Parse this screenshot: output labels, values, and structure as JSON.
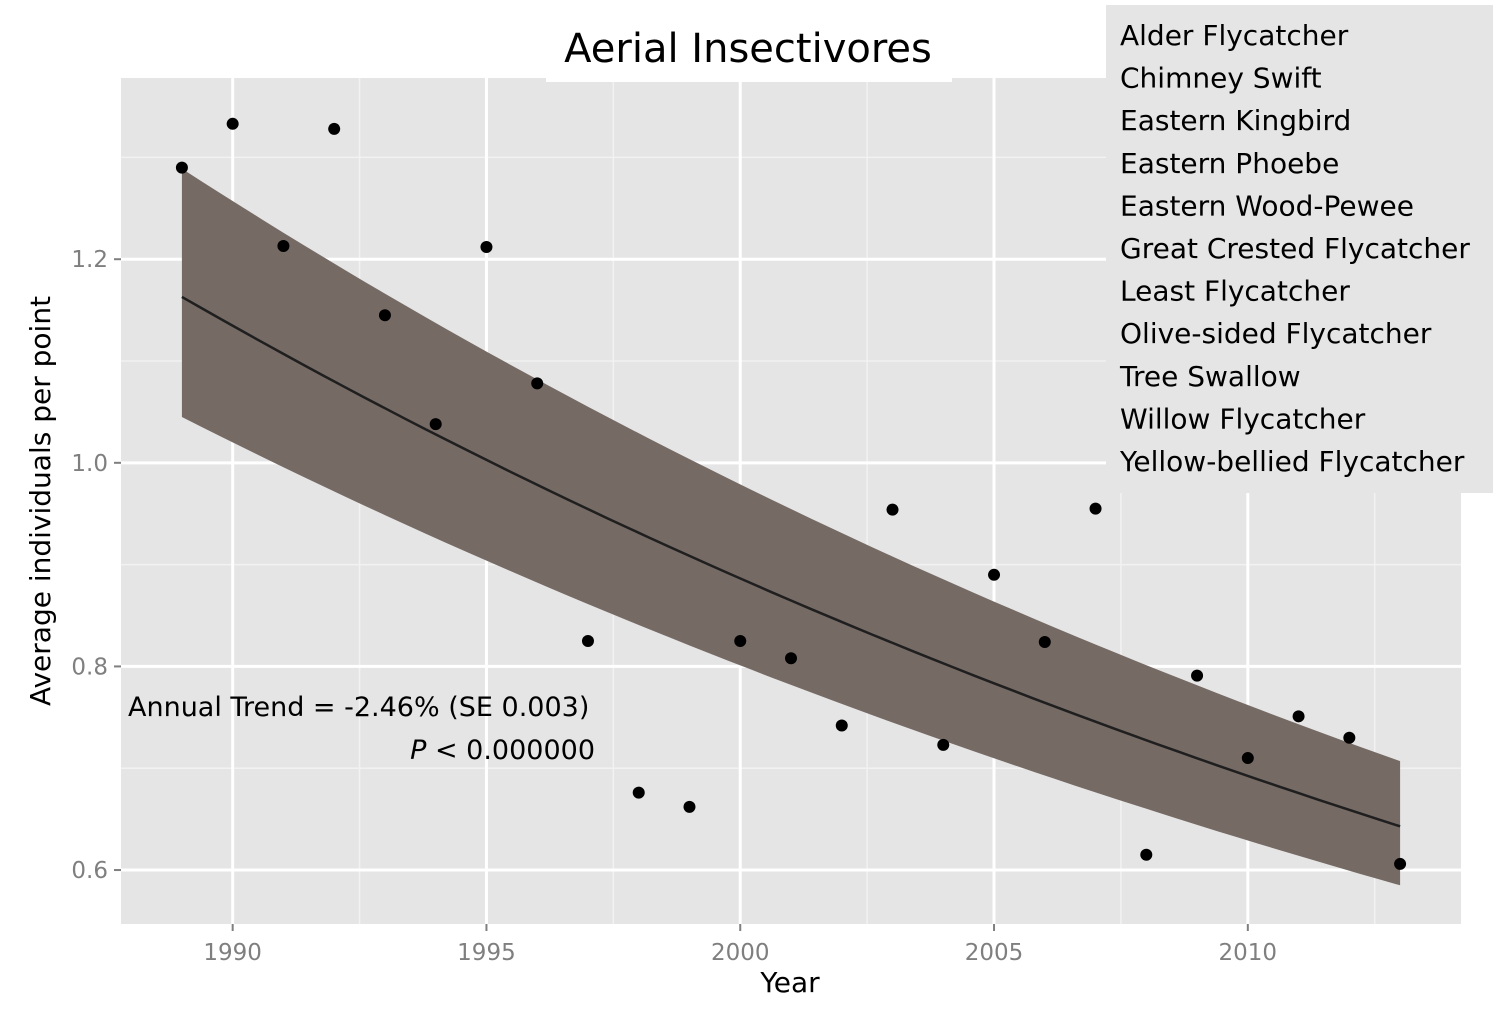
{
  "chart_data": {
    "type": "scatter",
    "title": "Aerial Insectivores",
    "xlabel": "Year",
    "ylabel": "Average individuals per point",
    "xlim": [
      1987.8,
      2014.2
    ],
    "ylim": [
      0.547,
      1.378
    ],
    "x_ticks": [
      1990,
      1995,
      2000,
      2005,
      2010
    ],
    "x_tick_labels": [
      "1990",
      "1995",
      "2000",
      "2005",
      "2010"
    ],
    "y_ticks": [
      0.6,
      0.8,
      1.0,
      1.2
    ],
    "y_tick_labels": [
      "0.6",
      "0.8",
      "1.0",
      "1.2"
    ],
    "grid": true,
    "points": {
      "x": [
        1989,
        1990,
        1991,
        1992,
        1993,
        1994,
        1995,
        1996,
        1997,
        1998,
        1999,
        2000,
        2001,
        2002,
        2003,
        2004,
        2005,
        2006,
        2007,
        2008,
        2009,
        2010,
        2011,
        2012,
        2013
      ],
      "y": [
        1.29,
        1.333,
        1.213,
        1.328,
        1.145,
        1.038,
        1.212,
        1.078,
        0.825,
        0.676,
        0.662,
        0.825,
        0.808,
        0.742,
        0.954,
        0.723,
        0.89,
        0.824,
        0.955,
        0.615,
        0.791,
        0.71,
        0.751,
        0.73,
        0.606
      ]
    },
    "trend": {
      "x": [
        1989,
        2013
      ],
      "y": [
        1.163,
        0.643
      ],
      "ci_lower": [
        1.045,
        0.585
      ],
      "ci_upper": [
        1.289,
        0.707
      ]
    },
    "annotation": {
      "line1": "Annual Trend = -2.46% (SE 0.003)",
      "line2_italic": "P",
      "line2_rest": " < 0.000000"
    },
    "legend_position": "top-right",
    "legend_entries": [
      "Alder Flycatcher",
      "Chimney Swift",
      "Eastern Kingbird",
      "Eastern Phoebe",
      "Eastern Wood-Pewee",
      "Great Crested Flycatcher",
      "Least Flycatcher",
      "Olive-sided Flycatcher",
      "Tree Swallow",
      "Willow Flycatcher",
      "Yellow-bellied  Flycatcher"
    ],
    "colors": {
      "panel": "#e5e5e5",
      "grid_major": "#ffffff",
      "grid_minor": "#f2f2f2",
      "ribbon": "#766a65",
      "trend_line": "#1f1f1f",
      "point": "#000000",
      "legend_bg": "#e5e5e5",
      "tick_text": "#7f7f7f"
    }
  }
}
